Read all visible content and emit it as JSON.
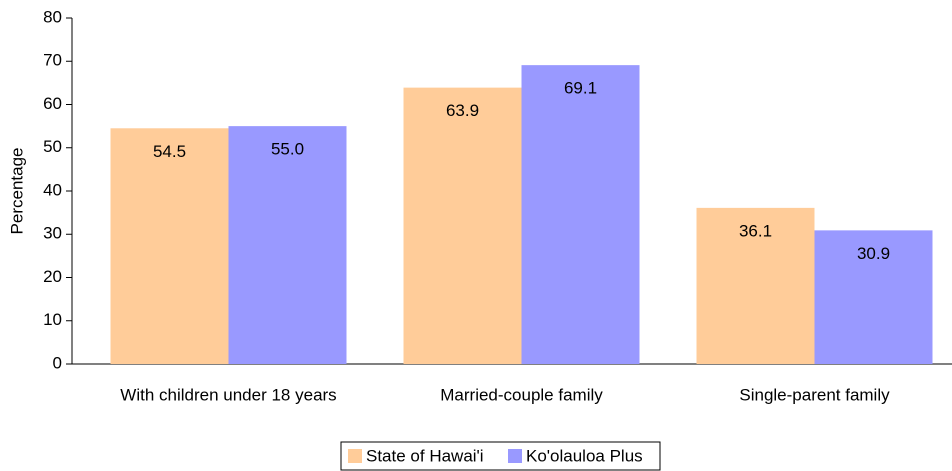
{
  "chart_data": {
    "type": "bar",
    "y_label": "Percentage",
    "categories": [
      "With children under 18 years",
      "Married-couple family",
      "Single-parent family"
    ],
    "series": [
      {
        "name": "State of Hawai'i",
        "color": "#ffcc99",
        "values": [
          54.5,
          63.9,
          36.1
        ],
        "value_labels": [
          "54.5",
          "63.9",
          "36.1"
        ]
      },
      {
        "name": "Ko'olauloa Plus",
        "color": "#9999ff",
        "values": [
          55.0,
          69.1,
          30.9
        ],
        "value_labels": [
          "55.0",
          "69.1",
          "30.9"
        ]
      }
    ],
    "ylim": [
      0,
      80
    ],
    "yticks": [
      0,
      10,
      20,
      30,
      40,
      50,
      60,
      70,
      80
    ],
    "grid": false,
    "legend": "bottom"
  }
}
